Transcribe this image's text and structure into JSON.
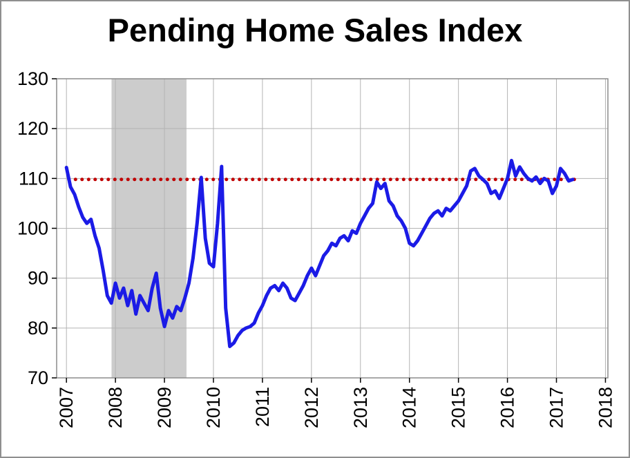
{
  "title": "Pending Home Sales Index",
  "colors": {
    "line": "#1b1be6",
    "reference_line": "#c00000",
    "recession_band": "#cccccc",
    "grid": "#b3b3b3",
    "plot_border": "#8c8c8c",
    "axis_tick": "#000000",
    "text": "#000000",
    "frame_border": "#8f8f8f",
    "background": "#ffffff"
  },
  "chart_data": {
    "type": "line",
    "title": "Pending Home Sales Index",
    "xlim": [
      2006.8,
      2018.05
    ],
    "ylim": [
      70,
      130
    ],
    "x_ticks": [
      2007,
      2008,
      2009,
      2010,
      2011,
      2012,
      2013,
      2014,
      2015,
      2016,
      2017,
      2018
    ],
    "y_ticks": [
      70,
      80,
      90,
      100,
      110,
      120,
      130
    ],
    "grid": true,
    "legend": "none",
    "series": [
      {
        "name": "Pending Home Sales Index",
        "x_start": 2007,
        "x_frequency": "monthly",
        "values": [
          112.2,
          108.3,
          106.8,
          104.3,
          102.2,
          101.0,
          101.8,
          98.5,
          96.0,
          91.5,
          86.5,
          85.0,
          89.0,
          86.0,
          88.0,
          84.5,
          87.5,
          82.8,
          86.5,
          85.0,
          83.5,
          88.0,
          91.0,
          84.0,
          80.3,
          83.5,
          82.0,
          84.3,
          83.5,
          86.0,
          89.0,
          94.0,
          101.0,
          110.2,
          98.0,
          93.0,
          92.3,
          101.0,
          112.4,
          84.0,
          76.3,
          77.0,
          78.5,
          79.5,
          80.0,
          80.3,
          81.0,
          83.0,
          84.5,
          86.5,
          88.0,
          88.5,
          87.5,
          89.0,
          88.0,
          86.0,
          85.5,
          87.0,
          88.5,
          90.5,
          92.0,
          90.5,
          92.5,
          94.5,
          95.5,
          97.0,
          96.5,
          98.0,
          98.5,
          97.5,
          99.5,
          99.0,
          101.0,
          102.5,
          104.0,
          105.0,
          109.3,
          108.0,
          109.0,
          105.5,
          104.5,
          102.5,
          101.5,
          100.0,
          97.0,
          96.5,
          97.5,
          99.0,
          100.5,
          102.0,
          103.0,
          103.5,
          102.5,
          104.0,
          103.5,
          104.5,
          105.5,
          107.0,
          108.5,
          111.5,
          112.0,
          110.5,
          109.8,
          109.0,
          107.0,
          107.5,
          106.0,
          108.0,
          110.0,
          113.6,
          110.5,
          112.3,
          111.0,
          110.0,
          109.5,
          110.3,
          109.0,
          110.0,
          109.5,
          107.0,
          108.5,
          112.0,
          111.0,
          109.5,
          109.8
        ]
      }
    ],
    "reference_line": {
      "name": "dotted-reference-line",
      "value": 109.8,
      "x_start": 2007.05,
      "x_end": 2017.42,
      "style": "dotted"
    },
    "shaded_region": {
      "name": "recession-shading",
      "x_start": 2007.92,
      "x_end": 2009.45
    }
  }
}
